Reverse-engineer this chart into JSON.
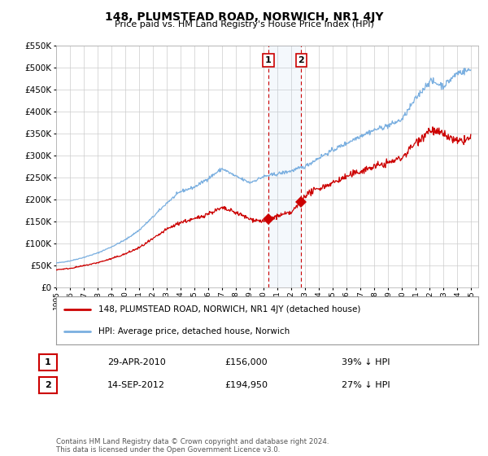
{
  "title": "148, PLUMSTEAD ROAD, NORWICH, NR1 4JY",
  "subtitle": "Price paid vs. HM Land Registry's House Price Index (HPI)",
  "ylim": [
    0,
    550000
  ],
  "xlim_start": 1995.0,
  "xlim_end": 2025.5,
  "legend_line1": "148, PLUMSTEAD ROAD, NORWICH, NR1 4JY (detached house)",
  "legend_line2": "HPI: Average price, detached house, Norwich",
  "transaction1_date": "29-APR-2010",
  "transaction1_price": "£156,000",
  "transaction1_pct": "39% ↓ HPI",
  "transaction1_x": 2010.33,
  "transaction1_y": 156000,
  "transaction2_date": "14-SEP-2012",
  "transaction2_price": "£194,950",
  "transaction2_pct": "27% ↓ HPI",
  "transaction2_x": 2012.71,
  "transaction2_y": 194950,
  "footer": "Contains HM Land Registry data © Crown copyright and database right 2024.\nThis data is licensed under the Open Government Licence v3.0.",
  "red_color": "#cc0000",
  "blue_color": "#7aafe0",
  "highlight_color": "#ddeeff",
  "vline_color": "#cc0000",
  "box_color": "#cc0000",
  "grid_color": "#cccccc",
  "background_color": "#ffffff"
}
